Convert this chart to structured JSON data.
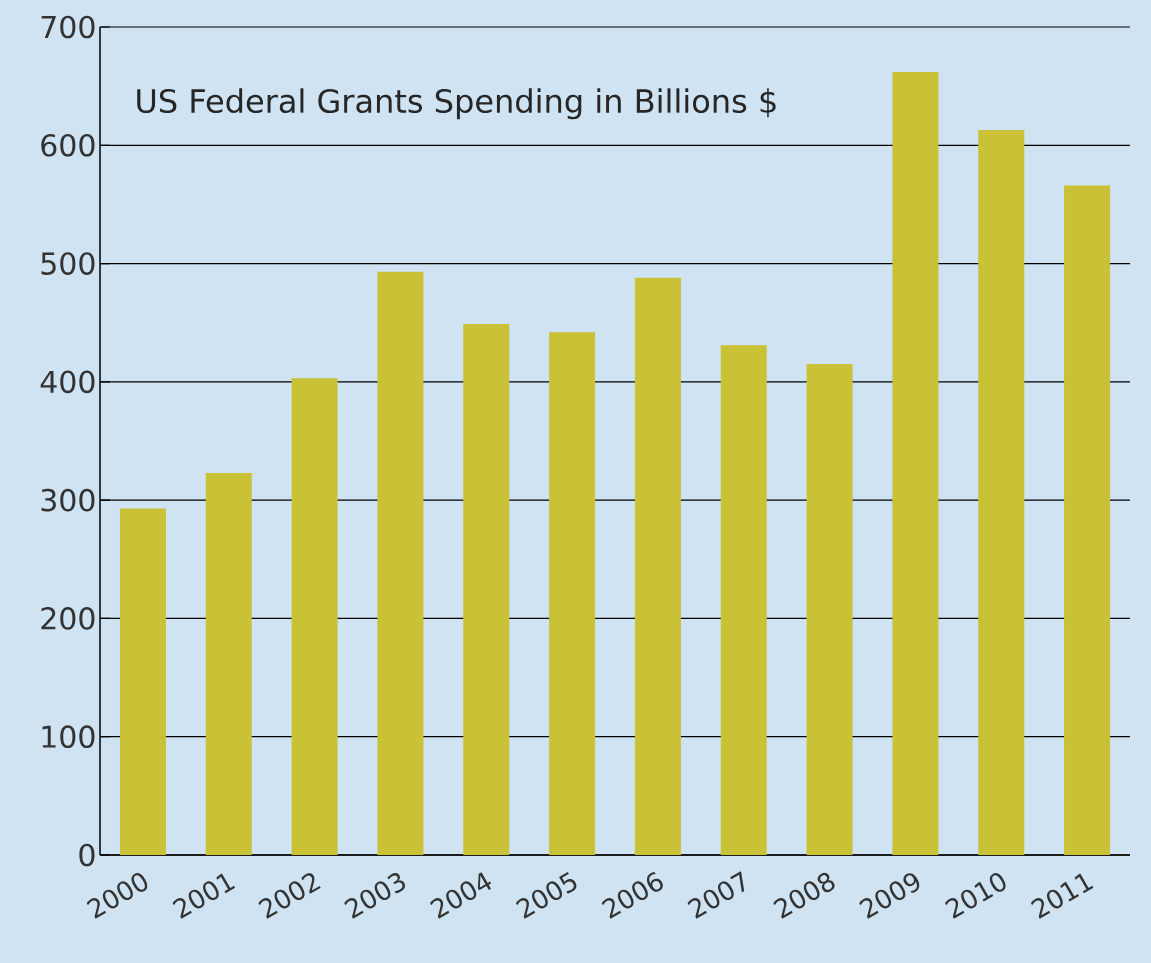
{
  "chart_data": {
    "type": "bar",
    "title": "US Federal Grants Spending in Billions $",
    "categories": [
      "2000",
      "2001",
      "2002",
      "2003",
      "2004",
      "2005",
      "2006",
      "2007",
      "2008",
      "2009",
      "2010",
      "2011"
    ],
    "values": [
      293,
      323,
      403,
      493,
      449,
      442,
      488,
      431,
      415,
      662,
      613,
      566
    ],
    "color": "#c9c236",
    "ylim": [
      0,
      700
    ],
    "yticks": [
      0,
      100,
      200,
      300,
      400,
      500,
      600,
      700
    ],
    "grid": "y"
  }
}
